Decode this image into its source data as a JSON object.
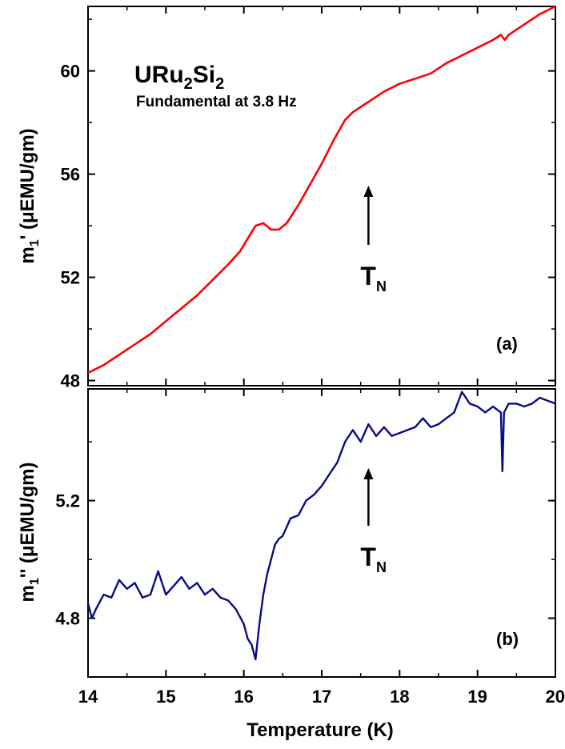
{
  "chart_data": [
    {
      "type": "line",
      "panel_label": "(a)",
      "title": "URu",
      "title_sub1": "2",
      "title_mid": "Si",
      "title_sub2": "2",
      "subtitle": "Fundamental at 3.8 Hz",
      "ylabel_main": "m",
      "ylabel_sub": "1",
      "ylabel_rest": "' (μEMU/gm)",
      "xlim": [
        14,
        20
      ],
      "ylim": [
        47.8,
        62.5
      ],
      "yticks": [
        "48",
        "52",
        "56",
        "60"
      ],
      "ytick_values": [
        48,
        52,
        56,
        60
      ],
      "annotation": {
        "text": "T",
        "sub": "N",
        "x": 17.6
      },
      "series": [
        {
          "color": "#ff0000",
          "x": [
            14.0,
            14.2,
            14.4,
            14.6,
            14.8,
            15.0,
            15.2,
            15.4,
            15.6,
            15.8,
            15.95,
            16.05,
            16.15,
            16.25,
            16.35,
            16.45,
            16.55,
            16.7,
            16.85,
            17.0,
            17.15,
            17.3,
            17.4,
            17.6,
            17.8,
            18.0,
            18.2,
            18.4,
            18.6,
            18.8,
            19.0,
            19.2,
            19.3,
            19.35,
            19.4,
            19.6,
            19.8,
            20.0
          ],
          "y": [
            48.3,
            48.6,
            49.0,
            49.4,
            49.8,
            50.3,
            50.8,
            51.3,
            51.9,
            52.5,
            53.0,
            53.5,
            54.0,
            54.1,
            53.85,
            53.85,
            54.1,
            54.8,
            55.6,
            56.4,
            57.3,
            58.1,
            58.4,
            58.8,
            59.2,
            59.5,
            59.7,
            59.9,
            60.3,
            60.6,
            60.9,
            61.2,
            61.4,
            61.2,
            61.4,
            61.8,
            62.2,
            62.5
          ]
        }
      ]
    },
    {
      "type": "line",
      "panel_label": "(b)",
      "ylabel_main": "m",
      "ylabel_sub": "1",
      "ylabel_rest": "'' (μEMU/gm)",
      "xlabel": "Temperature (K)",
      "xlim": [
        14,
        20
      ],
      "ylim": [
        4.6,
        5.58
      ],
      "xticks": [
        "14",
        "15",
        "16",
        "17",
        "18",
        "19",
        "20"
      ],
      "xtick_values": [
        14,
        15,
        16,
        17,
        18,
        19,
        20
      ],
      "yticks": [
        "4.8",
        "5.2"
      ],
      "ytick_values": [
        4.8,
        5.2
      ],
      "annotation": {
        "text": "T",
        "sub": "N",
        "x": 17.6
      },
      "series": [
        {
          "color": "#0a0a8a",
          "x": [
            14.0,
            14.05,
            14.1,
            14.2,
            14.3,
            14.4,
            14.5,
            14.6,
            14.7,
            14.8,
            14.9,
            15.0,
            15.1,
            15.2,
            15.3,
            15.4,
            15.5,
            15.6,
            15.7,
            15.8,
            15.9,
            16.0,
            16.05,
            16.1,
            16.15,
            16.2,
            16.25,
            16.3,
            16.4,
            16.45,
            16.5,
            16.6,
            16.7,
            16.8,
            16.9,
            17.0,
            17.1,
            17.2,
            17.3,
            17.4,
            17.5,
            17.6,
            17.7,
            17.8,
            17.9,
            18.0,
            18.1,
            18.2,
            18.3,
            18.4,
            18.5,
            18.6,
            18.7,
            18.8,
            18.85,
            18.9,
            19.0,
            19.1,
            19.2,
            19.3,
            19.32,
            19.34,
            19.4,
            19.5,
            19.6,
            19.7,
            19.8,
            19.9,
            20.0
          ],
          "y": [
            4.85,
            4.8,
            4.83,
            4.88,
            4.87,
            4.93,
            4.9,
            4.92,
            4.87,
            4.88,
            4.96,
            4.88,
            4.91,
            4.94,
            4.9,
            4.92,
            4.88,
            4.9,
            4.87,
            4.86,
            4.83,
            4.78,
            4.73,
            4.71,
            4.66,
            4.78,
            4.88,
            4.95,
            5.05,
            5.07,
            5.08,
            5.14,
            5.15,
            5.2,
            5.22,
            5.25,
            5.29,
            5.33,
            5.4,
            5.44,
            5.4,
            5.46,
            5.42,
            5.45,
            5.42,
            5.43,
            5.44,
            5.45,
            5.48,
            5.45,
            5.46,
            5.48,
            5.5,
            5.57,
            5.55,
            5.53,
            5.52,
            5.5,
            5.52,
            5.5,
            5.3,
            5.5,
            5.53,
            5.53,
            5.52,
            5.53,
            5.55,
            5.54,
            5.53
          ]
        }
      ]
    }
  ]
}
